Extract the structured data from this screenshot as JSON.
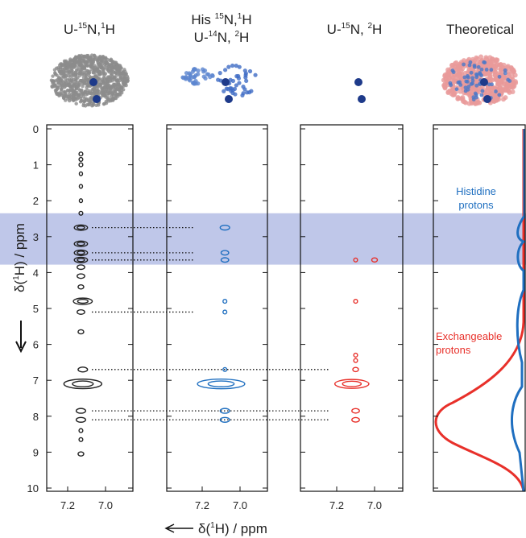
{
  "y_axis": {
    "label": [
      "δ(",
      "1",
      "H) / ppm"
    ],
    "ylim": [
      0,
      10
    ],
    "yticks": [
      0,
      1,
      2,
      3,
      4,
      5,
      6,
      7,
      8,
      9,
      10
    ]
  },
  "x_axis": {
    "label": [
      "δ(",
      "1",
      "H) / ppm"
    ],
    "xticks": [
      7.2,
      {
        "value": 7,
        "label": "7.0"
      }
    ]
  },
  "highlight": [
    2.35,
    3.78
  ],
  "panels": [
    {
      "title": [
        [
          "U-",
          "15",
          "N,",
          "1",
          "H"
        ]
      ],
      "color": "#222222",
      "peaks": [
        {
          "x": 7.13,
          "y": 0.7,
          "w": 0.02
        },
        {
          "x": 7.13,
          "y": 0.85,
          "w": 0.02
        },
        {
          "x": 7.13,
          "y": 1.0,
          "w": 0.02
        },
        {
          "x": 7.13,
          "y": 1.25,
          "w": 0.015
        },
        {
          "x": 7.13,
          "y": 1.6,
          "w": 0.015
        },
        {
          "x": 7.13,
          "y": 2.0,
          "w": 0.015
        },
        {
          "x": 7.13,
          "y": 2.35,
          "w": 0.02
        },
        {
          "x": 7.13,
          "y": 2.75,
          "w": 0.07
        },
        {
          "x": 7.13,
          "y": 3.2,
          "w": 0.07
        },
        {
          "x": 7.13,
          "y": 3.45,
          "w": 0.07
        },
        {
          "x": 7.13,
          "y": 3.65,
          "w": 0.07
        },
        {
          "x": 7.13,
          "y": 3.85,
          "w": 0.04
        },
        {
          "x": 7.13,
          "y": 4.1,
          "w": 0.04
        },
        {
          "x": 7.13,
          "y": 4.4,
          "w": 0.03
        },
        {
          "x": 7.12,
          "y": 4.8,
          "w": 0.1
        },
        {
          "x": 7.13,
          "y": 5.1,
          "w": 0.04
        },
        {
          "x": 7.13,
          "y": 5.65,
          "w": 0.03
        },
        {
          "x": 7.12,
          "y": 6.7,
          "w": 0.05
        },
        {
          "x": 7.12,
          "y": 7.1,
          "w": 0.2
        },
        {
          "x": 7.13,
          "y": 7.85,
          "w": 0.05
        },
        {
          "x": 7.13,
          "y": 8.1,
          "w": 0.05
        },
        {
          "x": 7.13,
          "y": 8.4,
          "w": 0.02
        },
        {
          "x": 7.13,
          "y": 8.65,
          "w": 0.02
        },
        {
          "x": 7.13,
          "y": 9.05,
          "w": 0.03
        }
      ]
    },
    {
      "title": [
        [
          "His ",
          "15",
          "N,",
          "1",
          "H"
        ],
        [
          "U-",
          "14",
          "N, ",
          "2",
          "H"
        ]
      ],
      "color": "#1f6fc0",
      "peaks": [
        {
          "x": 7.08,
          "y": 2.75,
          "w": 0.05
        },
        {
          "x": 7.08,
          "y": 3.45,
          "w": 0.04
        },
        {
          "x": 7.08,
          "y": 3.65,
          "w": 0.04
        },
        {
          "x": 7.08,
          "y": 4.8,
          "w": 0.02
        },
        {
          "x": 7.08,
          "y": 5.1,
          "w": 0.02
        },
        {
          "x": 7.08,
          "y": 6.7,
          "w": 0.02
        },
        {
          "x": 7.1,
          "y": 7.1,
          "w": 0.25
        },
        {
          "x": 7.08,
          "y": 7.85,
          "w": 0.05
        },
        {
          "x": 7.08,
          "y": 8.1,
          "w": 0.05
        }
      ]
    },
    {
      "title": [
        [
          "U-",
          "15",
          "N, ",
          "2",
          "H"
        ]
      ],
      "color": "#e8302a",
      "peaks": [
        {
          "x": 7.1,
          "y": 3.65,
          "w": 0.02
        },
        {
          "x": 7.0,
          "y": 3.65,
          "w": 0.03
        },
        {
          "x": 7.1,
          "y": 4.8,
          "w": 0.02
        },
        {
          "x": 7.1,
          "y": 6.3,
          "w": 0.02
        },
        {
          "x": 7.1,
          "y": 6.45,
          "w": 0.02
        },
        {
          "x": 7.1,
          "y": 6.7,
          "w": 0.03
        },
        {
          "x": 7.12,
          "y": 7.1,
          "w": 0.18
        },
        {
          "x": 7.1,
          "y": 7.85,
          "w": 0.04
        },
        {
          "x": 7.1,
          "y": 8.1,
          "w": 0.04
        }
      ]
    },
    {
      "title": [
        [
          "Theoretical"
        ]
      ]
    }
  ],
  "links": [
    {
      "y": 2.75,
      "panels": [
        0,
        1
      ]
    },
    {
      "y": 3.45,
      "panels": [
        0,
        1
      ]
    },
    {
      "y": 3.65,
      "panels": [
        0,
        1
      ]
    },
    {
      "y": 5.1,
      "panels": [
        0,
        1
      ]
    },
    {
      "y": 6.7,
      "panels": [
        0,
        2
      ]
    },
    {
      "y": 7.85,
      "panels": [
        0,
        2
      ]
    },
    {
      "y": 8.1,
      "panels": [
        0,
        2
      ]
    }
  ],
  "annotations": {
    "histidine": [
      "Histidine",
      "protons"
    ],
    "exchangeable": [
      "Exchangeable",
      "protons"
    ]
  }
}
